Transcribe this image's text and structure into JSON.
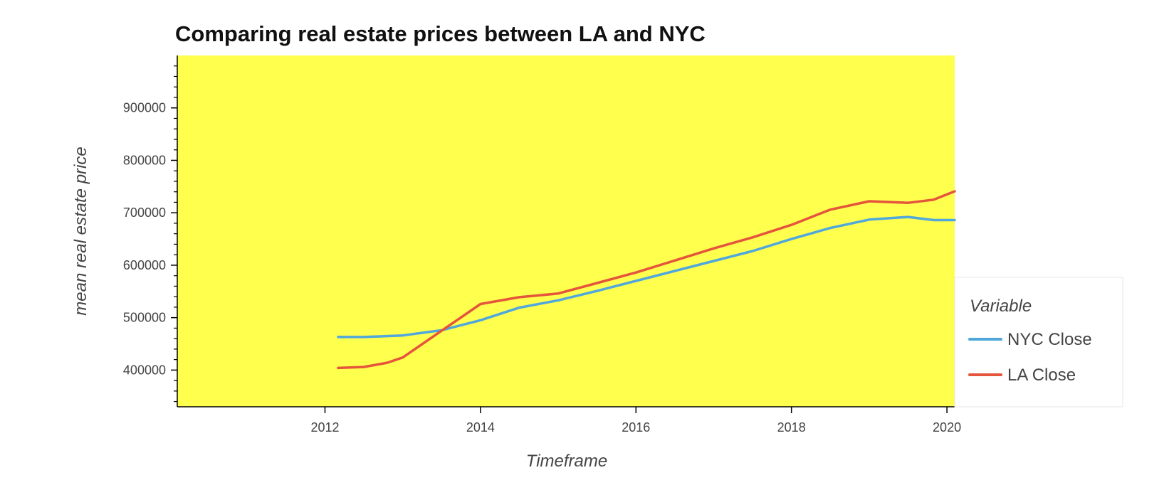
{
  "chart_data": {
    "type": "line",
    "title": "Comparing real estate prices between LA and NYC",
    "xlabel": "Timeframe",
    "ylabel": "mean real estate price",
    "xlim": [
      2010.1,
      2020.1
    ],
    "ylim": [
      330000,
      1000000
    ],
    "x_ticks": [
      2012,
      2014,
      2016,
      2018,
      2020
    ],
    "y_ticks": [
      400000,
      500000,
      600000,
      700000,
      800000,
      900000
    ],
    "x_tick_labels": [
      "2012",
      "2014",
      "2016",
      "2018",
      "2020"
    ],
    "y_tick_labels": [
      "400000",
      "500000",
      "600000",
      "700000",
      "800000",
      "900000"
    ],
    "background_color": "#ffff4d",
    "grid": false,
    "legend": {
      "title": "Variable",
      "placement": "right"
    },
    "series": [
      {
        "name": "NYC Close",
        "color": "#4fa7dc",
        "points": [
          [
            2012.17,
            463000
          ],
          [
            2012.5,
            463000
          ],
          [
            2013.0,
            466000
          ],
          [
            2013.5,
            476000
          ],
          [
            2014.0,
            495000
          ],
          [
            2014.5,
            519000
          ],
          [
            2015.0,
            533000
          ],
          [
            2015.5,
            551000
          ],
          [
            2016.0,
            570000
          ],
          [
            2016.5,
            589000
          ],
          [
            2017.0,
            608000
          ],
          [
            2017.5,
            627000
          ],
          [
            2018.0,
            650000
          ],
          [
            2018.5,
            671000
          ],
          [
            2019.0,
            687000
          ],
          [
            2019.5,
            692000
          ],
          [
            2019.83,
            686000
          ],
          [
            2020.1,
            686000
          ]
        ]
      },
      {
        "name": "LA Close",
        "color": "#e4553b",
        "points": [
          [
            2012.17,
            404000
          ],
          [
            2012.5,
            406000
          ],
          [
            2012.8,
            414000
          ],
          [
            2013.0,
            424000
          ],
          [
            2013.5,
            475000
          ],
          [
            2014.0,
            526000
          ],
          [
            2014.5,
            539000
          ],
          [
            2015.0,
            546000
          ],
          [
            2015.5,
            566000
          ],
          [
            2016.0,
            586000
          ],
          [
            2016.5,
            609000
          ],
          [
            2017.0,
            632000
          ],
          [
            2017.5,
            653000
          ],
          [
            2018.0,
            677000
          ],
          [
            2018.5,
            706000
          ],
          [
            2019.0,
            722000
          ],
          [
            2019.5,
            719000
          ],
          [
            2019.83,
            725000
          ],
          [
            2020.1,
            741000
          ]
        ]
      }
    ]
  }
}
